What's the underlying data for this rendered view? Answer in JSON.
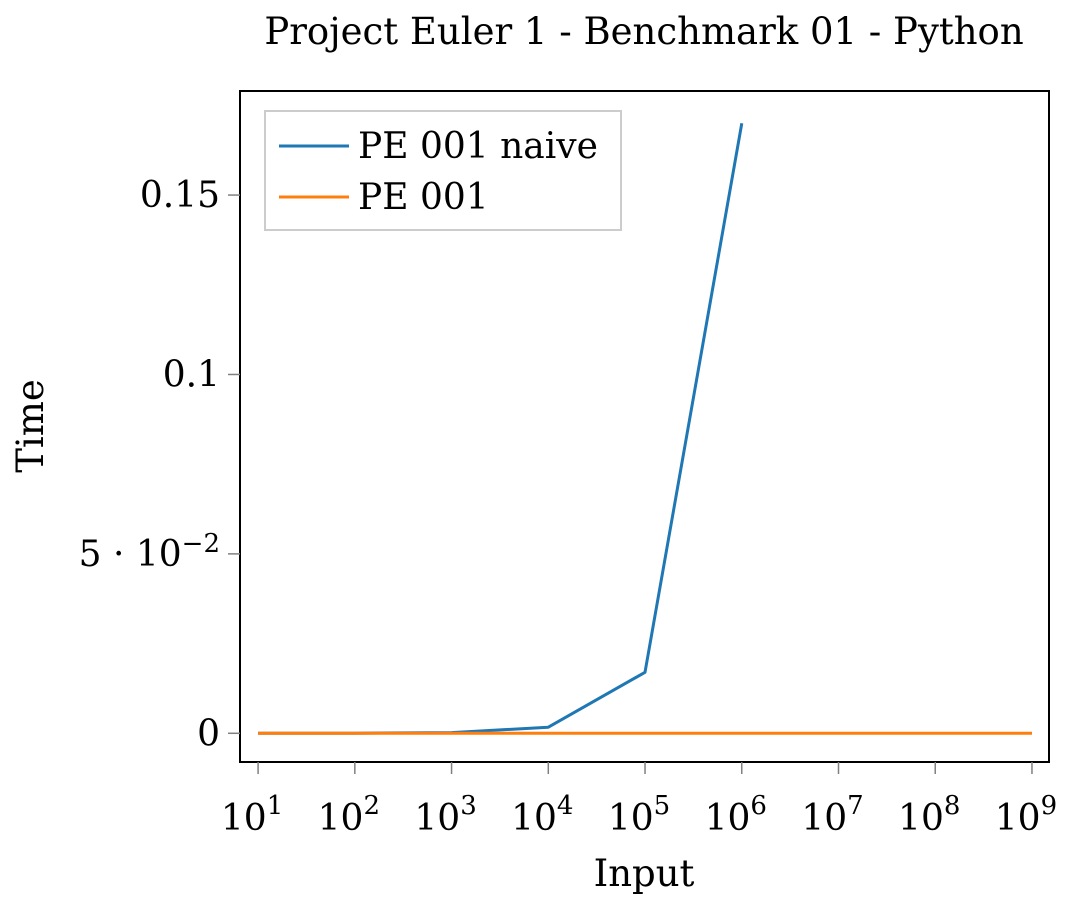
{
  "chart_data": {
    "type": "line",
    "title": "Project Euler 1 - Benchmark 01 - Python",
    "xlabel": "Input",
    "ylabel": "Time",
    "x_scale": "log",
    "x_ticks": [
      {
        "base": "10",
        "exp": "1",
        "value": 10
      },
      {
        "base": "10",
        "exp": "2",
        "value": 100
      },
      {
        "base": "10",
        "exp": "3",
        "value": 1000
      },
      {
        "base": "10",
        "exp": "4",
        "value": 10000
      },
      {
        "base": "10",
        "exp": "5",
        "value": 100000
      },
      {
        "base": "10",
        "exp": "6",
        "value": 1000000
      },
      {
        "base": "10",
        "exp": "7",
        "value": 10000000
      },
      {
        "base": "10",
        "exp": "8",
        "value": 100000000
      },
      {
        "base": "10",
        "exp": "9",
        "value": 1000000000
      }
    ],
    "y_ticks": [
      {
        "value": 0,
        "label": "0"
      },
      {
        "value": 0.05,
        "label": "5 · 10",
        "sup": "−2"
      },
      {
        "value": 0.1,
        "label": "0.1"
      },
      {
        "value": 0.15,
        "label": "0.15"
      }
    ],
    "xlim": [
      6.5,
      1500000000
    ],
    "ylim": [
      -0.008,
      0.179
    ],
    "grid": false,
    "legend_position": "top-left",
    "series": [
      {
        "name": "PE 001 naive",
        "color": "#1f77b4",
        "x": [
          10,
          100,
          1000,
          10000,
          100000,
          1000000
        ],
        "y": [
          2e-06,
          2e-05,
          0.00018,
          0.0017,
          0.017,
          0.17
        ]
      },
      {
        "name": "PE 001",
        "color": "#ff7f0e",
        "x": [
          10,
          100,
          1000,
          10000,
          100000,
          1000000,
          10000000,
          100000000,
          1000000000
        ],
        "y": [
          1e-06,
          1e-06,
          1e-06,
          1e-06,
          1e-06,
          1e-06,
          1e-06,
          1e-06,
          1e-06
        ]
      }
    ]
  }
}
